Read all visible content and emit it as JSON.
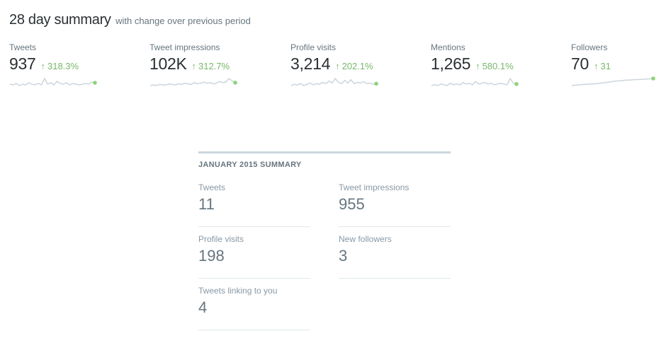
{
  "header": {
    "title": "28 day summary",
    "subtitle": "with change over previous period"
  },
  "metrics": [
    {
      "label": "Tweets",
      "value": "937",
      "change": "318.3%",
      "spark": [
        4,
        3,
        5,
        2,
        4,
        3,
        6,
        4,
        3,
        5,
        3,
        12,
        4,
        6,
        3,
        8,
        5,
        4,
        6,
        3,
        5,
        4,
        3,
        4,
        5,
        4,
        7,
        6
      ]
    },
    {
      "label": "Tweet impressions",
      "value": "102K",
      "change": "312.7%",
      "spark": [
        2,
        3,
        2,
        4,
        3,
        3,
        5,
        4,
        3,
        5,
        4,
        6,
        5,
        4,
        7,
        5,
        6,
        8,
        6,
        7,
        5,
        6,
        9,
        7,
        8,
        14,
        10,
        7
      ]
    },
    {
      "label": "Profile visits",
      "value": "3,214",
      "change": "202.1%",
      "spark": [
        3,
        5,
        4,
        6,
        3,
        5,
        7,
        4,
        6,
        5,
        8,
        6,
        10,
        7,
        14,
        8,
        6,
        11,
        7,
        12,
        6,
        8,
        7,
        9,
        6,
        7,
        5,
        6
      ]
    },
    {
      "label": "Mentions",
      "value": "1,265",
      "change": "580.1%",
      "spark": [
        3,
        4,
        3,
        5,
        4,
        3,
        6,
        4,
        5,
        4,
        7,
        5,
        6,
        4,
        8,
        5,
        6,
        7,
        5,
        6,
        4,
        5,
        6,
        5,
        4,
        12,
        6,
        5
      ]
    },
    {
      "label": "Followers",
      "value": "70",
      "change": "31",
      "spark": [
        0,
        0.5,
        1,
        1.5,
        2,
        2.5,
        3,
        3,
        3.5,
        4,
        5,
        5.5,
        6,
        7,
        8,
        8.5,
        9,
        9.5,
        10,
        10,
        10.5,
        11,
        11,
        11.5,
        12,
        12,
        12.5,
        13
      ]
    }
  ],
  "colors": {
    "spark_line": "#ccd6dd",
    "spark_dot": "#8ed37a",
    "up": "#78b86a"
  },
  "icons": {
    "change": "arrow-up-icon"
  },
  "january": {
    "title": "JANUARY 2015 SUMMARY",
    "stats": [
      {
        "label": "Tweets",
        "value": "11"
      },
      {
        "label": "Tweet impressions",
        "value": "955"
      },
      {
        "label": "Profile visits",
        "value": "198"
      },
      {
        "label": "New followers",
        "value": "3"
      },
      {
        "label": "Tweets linking to you",
        "value": "4"
      }
    ]
  }
}
